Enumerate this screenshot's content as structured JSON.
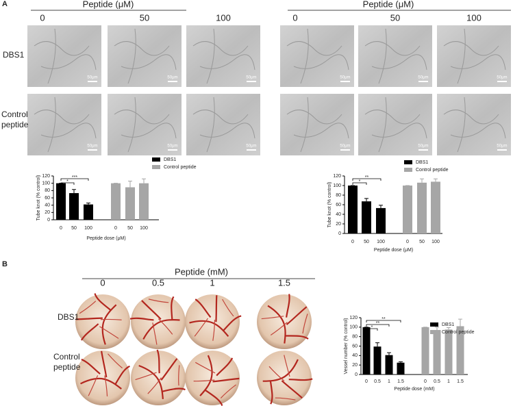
{
  "panel_a": {
    "label": "A",
    "header": "Peptide (μM)",
    "doses": [
      "0",
      "50",
      "100"
    ],
    "rows": [
      "DBS1",
      "Control peptide"
    ],
    "scale_bar": "50μm"
  },
  "panel_b": {
    "label": "B",
    "header": "Peptide (mM)",
    "doses": [
      "0",
      "0.5",
      "1",
      "1.5"
    ],
    "rows": [
      "DBS1",
      "Control peptide"
    ]
  },
  "chart_data": [
    {
      "type": "bar",
      "ylabel": "Tube knot (% control)",
      "xlabel": "Peptide dose (μM)",
      "categories": [
        "0",
        "50",
        "100",
        "0",
        "50",
        "100"
      ],
      "ylim": [
        0,
        120
      ],
      "yticks": [
        0,
        20,
        40,
        60,
        80,
        100,
        120
      ],
      "series": [
        {
          "name": "DBS1",
          "color": "#000000",
          "values": [
            100,
            73,
            42,
            null,
            null,
            null
          ],
          "errors": [
            0,
            10,
            4,
            null,
            null,
            null
          ]
        },
        {
          "name": "Control peptide",
          "color": "#a6a6a6",
          "values": [
            null,
            null,
            null,
            100,
            89,
            100
          ],
          "errors": [
            null,
            null,
            null,
            0,
            17,
            12
          ]
        }
      ],
      "annotations": [
        {
          "text": "*",
          "from": 0,
          "to": 1
        },
        {
          "text": "***",
          "from": 0,
          "to": 2
        }
      ]
    },
    {
      "type": "bar",
      "ylabel": "Tube knot (% control)",
      "xlabel": "Peptide dose (μM)",
      "categories": [
        "0",
        "50",
        "100",
        "0",
        "50",
        "100"
      ],
      "ylim": [
        0,
        120
      ],
      "yticks": [
        0,
        20,
        40,
        60,
        80,
        100,
        120
      ],
      "series": [
        {
          "name": "DBS1",
          "color": "#000000",
          "values": [
            100,
            67,
            53,
            null,
            null,
            null
          ],
          "errors": [
            0,
            6,
            6,
            null,
            null,
            null
          ]
        },
        {
          "name": "Control peptide",
          "color": "#a6a6a6",
          "values": [
            null,
            null,
            null,
            100,
            106,
            108
          ],
          "errors": [
            null,
            null,
            null,
            0,
            8,
            6
          ]
        }
      ],
      "annotations": [
        {
          "text": "*",
          "from": 0,
          "to": 1
        },
        {
          "text": "**",
          "from": 0,
          "to": 2
        }
      ]
    },
    {
      "type": "bar",
      "ylabel": "Vessel number (% control)",
      "xlabel": "Peptide dose (mM)",
      "categories": [
        "0",
        "0.5",
        "1",
        "1.5",
        "0",
        "0.5",
        "1",
        "1.5"
      ],
      "ylim": [
        0,
        120
      ],
      "yticks": [
        0,
        20,
        40,
        60,
        80,
        100,
        120
      ],
      "series": [
        {
          "name": "DBS1",
          "color": "#000000",
          "values": [
            100,
            59,
            41,
            25,
            null,
            null,
            null,
            null
          ],
          "errors": [
            0,
            8,
            5,
            2,
            null,
            null,
            null,
            null
          ]
        },
        {
          "name": "Control peptide",
          "color": "#a6a6a6",
          "values": [
            null,
            null,
            null,
            null,
            100,
            94,
            95,
            102
          ],
          "errors": [
            null,
            null,
            null,
            null,
            0,
            6,
            4,
            15
          ]
        }
      ],
      "annotations": [
        {
          "text": "*",
          "from": 0,
          "to": 1
        },
        {
          "text": "**",
          "from": 0,
          "to": 2
        },
        {
          "text": "**",
          "from": 0,
          "to": 3
        }
      ]
    }
  ]
}
